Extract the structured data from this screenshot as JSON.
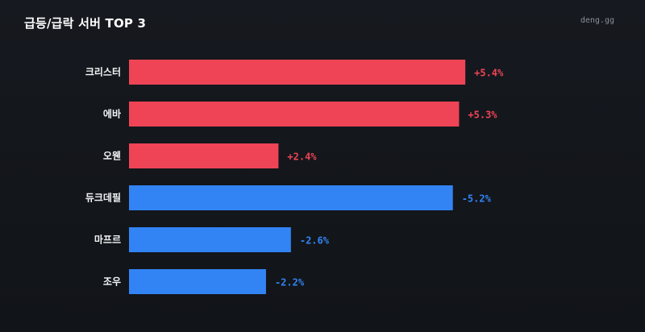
{
  "header": {
    "title": "급등/급락 서버 TOP 3",
    "brand": "deng.gg"
  },
  "colors": {
    "up": "#ef4456",
    "down": "#3284f4",
    "background": "#14171c"
  },
  "chart_data": {
    "type": "bar",
    "orientation": "horizontal",
    "title": "급등/급락 서버 TOP 3",
    "categories": [
      "크리스터",
      "에바",
      "오웬",
      "듀크데필",
      "마프르",
      "조우"
    ],
    "values": [
      5.4,
      5.3,
      2.4,
      -5.2,
      -2.6,
      -2.2
    ],
    "value_labels": [
      "+5.4%",
      "+5.3%",
      "+2.4%",
      "-5.2%",
      "-2.6%",
      "-2.2%"
    ],
    "xlim": [
      0,
      5.45
    ],
    "bar_length": "absolute value",
    "grid": false,
    "legend": "none"
  }
}
